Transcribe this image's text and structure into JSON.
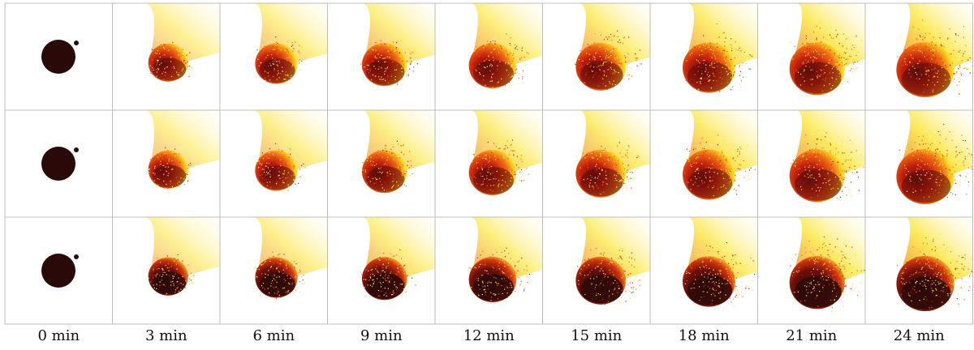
{
  "figure": {
    "time_labels": [
      "0 min",
      "3 min",
      "6 min",
      "9 min",
      "12 min",
      "15 min",
      "18 min",
      "21 min",
      "24 min"
    ],
    "rows": 3,
    "colors": {
      "body": "#2a0a08",
      "deep_red": "#5a0d0b",
      "red": "#c2200e",
      "orange": "#ef6a12",
      "yellow": "#fbe32a",
      "pale_yellow": "#fff2a8",
      "grid_line": "#bdbdbd"
    }
  }
}
